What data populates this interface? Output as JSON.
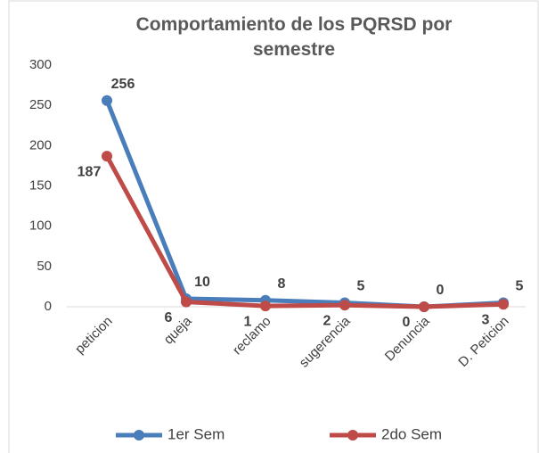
{
  "chart_data": {
    "type": "line",
    "title": "Comportamiento de los PQRSD por semestre",
    "categories": [
      "peticion",
      "queja",
      "reclamo",
      "sugerencia",
      "Denuncia",
      "D. Peticion"
    ],
    "series": [
      {
        "name": "1er Sem",
        "color": "#4a7ebb",
        "values": [
          256,
          10,
          8,
          5,
          0,
          5
        ]
      },
      {
        "name": "2do Sem",
        "color": "#be4b48",
        "values": [
          187,
          6,
          1,
          2,
          0,
          3
        ]
      }
    ],
    "ylim": [
      0,
      300
    ],
    "yticks": [
      0,
      50,
      100,
      150,
      200,
      250,
      300
    ],
    "grid": false,
    "legend": "bottom"
  }
}
